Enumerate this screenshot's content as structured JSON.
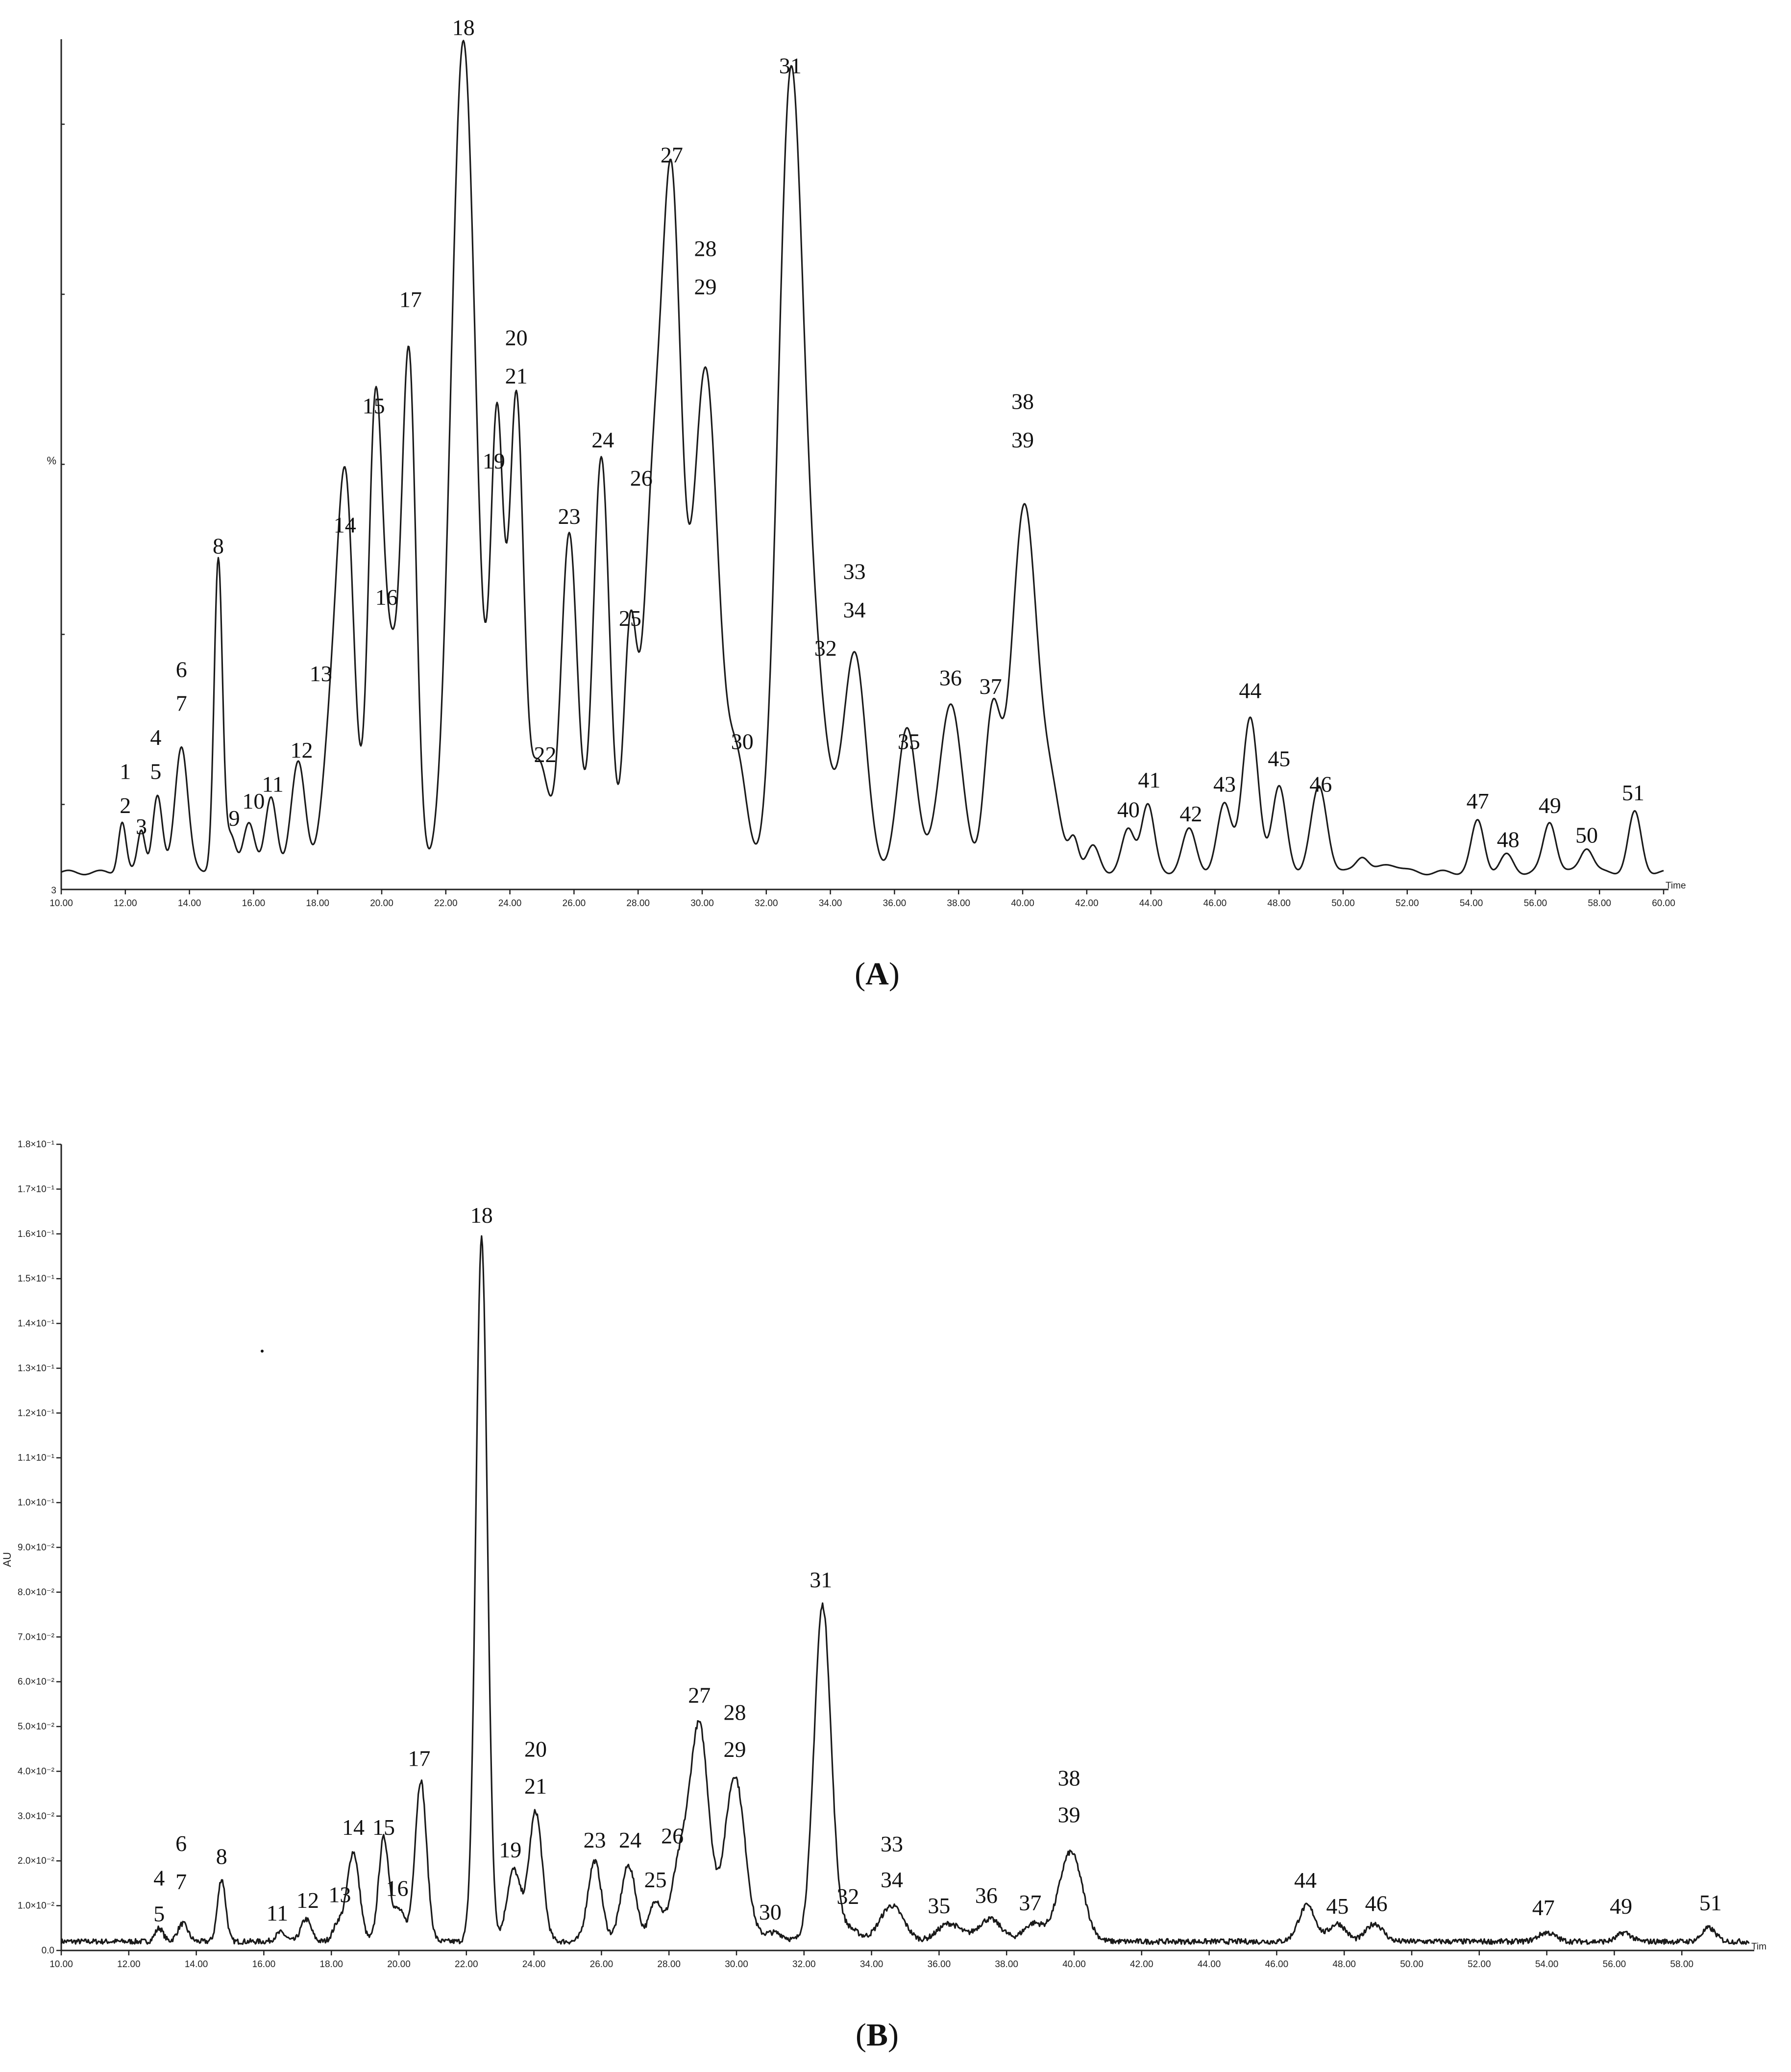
{
  "panels": [
    {
      "caption_letter": "A",
      "chart_data": {
        "type": "line",
        "title": "",
        "xlabel": "Time",
        "ylabel": "%",
        "y_bottom_tick": "3",
        "xlim": [
          10,
          60
        ],
        "ylim": [
          0,
          100
        ],
        "x_ticks": [
          "10.00",
          "12.00",
          "14.00",
          "16.00",
          "18.00",
          "20.00",
          "22.00",
          "24.00",
          "26.00",
          "28.00",
          "30.00",
          "32.00",
          "34.00",
          "36.00",
          "38.00",
          "40.00",
          "42.00",
          "44.00",
          "46.00",
          "48.00",
          "50.00",
          "52.00",
          "54.00",
          "56.00",
          "58.00",
          "60.00"
        ],
        "baseline": 2,
        "peaks": [
          {
            "x": 11.9,
            "y": 6,
            "w": 0.12
          },
          {
            "x": 12.5,
            "y": 5,
            "w": 0.12
          },
          {
            "x": 13.0,
            "y": 9,
            "w": 0.15
          },
          {
            "x": 13.75,
            "y": 15,
            "w": 0.2
          },
          {
            "x": 14.9,
            "y": 37,
            "w": 0.13
          },
          {
            "x": 15.3,
            "y": 4,
            "w": 0.15
          },
          {
            "x": 15.85,
            "y": 6,
            "w": 0.18
          },
          {
            "x": 16.55,
            "y": 9,
            "w": 0.18
          },
          {
            "x": 17.4,
            "y": 13,
            "w": 0.22
          },
          {
            "x": 18.5,
            "y": 19,
            "w": 0.3
          },
          {
            "x": 18.9,
            "y": 39,
            "w": 0.25
          },
          {
            "x": 19.8,
            "y": 54,
            "w": 0.22
          },
          {
            "x": 20.3,
            "y": 22,
            "w": 0.25
          },
          {
            "x": 20.85,
            "y": 60,
            "w": 0.22
          },
          {
            "x": 22.55,
            "y": 98,
            "w": 0.38
          },
          {
            "x": 23.6,
            "y": 52,
            "w": 0.2
          },
          {
            "x": 24.2,
            "y": 55,
            "w": 0.22
          },
          {
            "x": 24.9,
            "y": 13,
            "w": 0.3
          },
          {
            "x": 25.85,
            "y": 40,
            "w": 0.25
          },
          {
            "x": 26.85,
            "y": 49,
            "w": 0.25
          },
          {
            "x": 27.75,
            "y": 28,
            "w": 0.2
          },
          {
            "x": 28.45,
            "y": 40,
            "w": 0.3
          },
          {
            "x": 29.05,
            "y": 76,
            "w": 0.3
          },
          {
            "x": 30.1,
            "y": 59,
            "w": 0.4
          },
          {
            "x": 31.1,
            "y": 12,
            "w": 0.3
          },
          {
            "x": 32.75,
            "y": 91,
            "w": 0.38
          },
          {
            "x": 33.5,
            "y": 22,
            "w": 0.4
          },
          {
            "x": 34.75,
            "y": 26,
            "w": 0.35
          },
          {
            "x": 36.4,
            "y": 17,
            "w": 0.3
          },
          {
            "x": 37.75,
            "y": 20,
            "w": 0.35
          },
          {
            "x": 39.05,
            "y": 18,
            "w": 0.25
          },
          {
            "x": 40.05,
            "y": 43,
            "w": 0.4
          },
          {
            "x": 40.9,
            "y": 8,
            "w": 0.3
          },
          {
            "x": 41.6,
            "y": 4,
            "w": 0.15
          },
          {
            "x": 42.2,
            "y": 3,
            "w": 0.2
          },
          {
            "x": 43.3,
            "y": 5,
            "w": 0.2
          },
          {
            "x": 43.9,
            "y": 8,
            "w": 0.2
          },
          {
            "x": 45.2,
            "y": 5,
            "w": 0.22
          },
          {
            "x": 46.3,
            "y": 8,
            "w": 0.22
          },
          {
            "x": 47.1,
            "y": 18,
            "w": 0.25
          },
          {
            "x": 48.0,
            "y": 10,
            "w": 0.22
          },
          {
            "x": 49.25,
            "y": 10,
            "w": 0.25
          },
          {
            "x": 50.6,
            "y": 2,
            "w": 0.2
          },
          {
            "x": 51.5,
            "y": 1,
            "w": 0.3
          },
          {
            "x": 54.2,
            "y": 6,
            "w": 0.2
          },
          {
            "x": 55.1,
            "y": 2,
            "w": 0.2
          },
          {
            "x": 56.45,
            "y": 6,
            "w": 0.2
          },
          {
            "x": 57.6,
            "y": 3,
            "w": 0.2
          },
          {
            "x": 59.1,
            "y": 7,
            "w": 0.2
          }
        ],
        "annotations": [
          {
            "text": "1",
            "x": 12.0,
            "y": 13
          },
          {
            "text": "2",
            "x": 12.0,
            "y": 9
          },
          {
            "text": "3",
            "x": 12.5,
            "y": 6.5
          },
          {
            "text": "4",
            "x": 12.95,
            "y": 17
          },
          {
            "text": "5",
            "x": 12.95,
            "y": 13
          },
          {
            "text": "6",
            "x": 13.75,
            "y": 25
          },
          {
            "text": "7",
            "x": 13.75,
            "y": 21
          },
          {
            "text": "8",
            "x": 14.9,
            "y": 39.5
          },
          {
            "text": "9",
            "x": 15.4,
            "y": 7.5
          },
          {
            "text": "10",
            "x": 16.0,
            "y": 9.5
          },
          {
            "text": "11",
            "x": 16.6,
            "y": 11.5
          },
          {
            "text": "12",
            "x": 17.5,
            "y": 15.5
          },
          {
            "text": "13",
            "x": 18.1,
            "y": 24.5
          },
          {
            "text": "14",
            "x": 18.85,
            "y": 42
          },
          {
            "text": "15",
            "x": 19.75,
            "y": 56
          },
          {
            "text": "16",
            "x": 20.15,
            "y": 33.5
          },
          {
            "text": "17",
            "x": 20.9,
            "y": 68.5
          },
          {
            "text": "18",
            "x": 22.55,
            "y": 100.5
          },
          {
            "text": "19",
            "x": 23.5,
            "y": 49.5
          },
          {
            "text": "20",
            "x": 24.2,
            "y": 64
          },
          {
            "text": "21",
            "x": 24.2,
            "y": 59.5
          },
          {
            "text": "22",
            "x": 25.1,
            "y": 15
          },
          {
            "text": "23",
            "x": 25.85,
            "y": 43
          },
          {
            "text": "24",
            "x": 26.9,
            "y": 52
          },
          {
            "text": "25",
            "x": 27.75,
            "y": 31
          },
          {
            "text": "26",
            "x": 28.1,
            "y": 47.5
          },
          {
            "text": "27",
            "x": 29.05,
            "y": 85.5
          },
          {
            "text": "28",
            "x": 30.1,
            "y": 74.5
          },
          {
            "text": "29",
            "x": 30.1,
            "y": 70
          },
          {
            "text": "30",
            "x": 31.25,
            "y": 16.5
          },
          {
            "text": "31",
            "x": 32.75,
            "y": 96
          },
          {
            "text": "32",
            "x": 33.85,
            "y": 27.5
          },
          {
            "text": "33",
            "x": 34.75,
            "y": 36.5
          },
          {
            "text": "34",
            "x": 34.75,
            "y": 32
          },
          {
            "text": "35",
            "x": 36.45,
            "y": 16.5
          },
          {
            "text": "36",
            "x": 37.75,
            "y": 24
          },
          {
            "text": "37",
            "x": 39.0,
            "y": 23
          },
          {
            "text": "38",
            "x": 40.0,
            "y": 56.5
          },
          {
            "text": "39",
            "x": 40.0,
            "y": 52
          },
          {
            "text": "40",
            "x": 43.3,
            "y": 8.5
          },
          {
            "text": "41",
            "x": 43.95,
            "y": 12
          },
          {
            "text": "42",
            "x": 45.25,
            "y": 8
          },
          {
            "text": "43",
            "x": 46.3,
            "y": 11.5
          },
          {
            "text": "44",
            "x": 47.1,
            "y": 22.5
          },
          {
            "text": "45",
            "x": 48.0,
            "y": 14.5
          },
          {
            "text": "46",
            "x": 49.3,
            "y": 11.5
          },
          {
            "text": "47",
            "x": 54.2,
            "y": 9.5
          },
          {
            "text": "48",
            "x": 55.15,
            "y": 5
          },
          {
            "text": "49",
            "x": 56.45,
            "y": 9
          },
          {
            "text": "50",
            "x": 57.6,
            "y": 5.5
          },
          {
            "text": "51",
            "x": 59.05,
            "y": 10.5
          }
        ]
      }
    },
    {
      "caption_letter": "B",
      "chart_data": {
        "type": "line",
        "title": "",
        "xlabel": "Tim",
        "ylabel": "AU",
        "xlim": [
          10,
          60
        ],
        "ylim": [
          0,
          0.18
        ],
        "x_ticks": [
          "10.00",
          "12.00",
          "14.00",
          "16.00",
          "18.00",
          "20.00",
          "22.00",
          "24.00",
          "26.00",
          "28.00",
          "30.00",
          "32.00",
          "34.00",
          "36.00",
          "38.00",
          "40.00",
          "42.00",
          "44.00",
          "46.00",
          "48.00",
          "50.00",
          "52.00",
          "54.00",
          "56.00",
          "58.00"
        ],
        "y_tick_values": [
          0,
          0.01,
          0.02,
          0.03,
          0.04,
          0.05,
          0.06,
          0.07,
          0.08,
          0.09,
          0.1,
          0.11,
          0.12,
          0.13,
          0.14,
          0.15,
          0.16,
          0.17,
          0.18
        ],
        "y_ticks": [
          "0.0",
          "1.0×10⁻²",
          "2.0×10⁻²",
          "3.0×10⁻²",
          "4.0×10⁻²",
          "5.0×10⁻²",
          "6.0×10⁻²",
          "7.0×10⁻²",
          "8.0×10⁻²",
          "9.0×10⁻²",
          "1.0×10⁻¹",
          "1.1×10⁻¹",
          "1.2×10⁻¹",
          "1.3×10⁻¹",
          "1.4×10⁻¹",
          "1.5×10⁻¹",
          "1.6×10⁻¹",
          "1.7×10⁻¹",
          "1.8×10⁻¹"
        ],
        "baseline": 0.002,
        "noise": 0.0012,
        "peaks": [
          {
            "x": 12.9,
            "y": 0.003,
            "w": 0.12
          },
          {
            "x": 13.6,
            "y": 0.004,
            "w": 0.15
          },
          {
            "x": 14.75,
            "y": 0.014,
            "w": 0.12
          },
          {
            "x": 16.5,
            "y": 0.002,
            "w": 0.15
          },
          {
            "x": 17.25,
            "y": 0.005,
            "w": 0.15
          },
          {
            "x": 18.2,
            "y": 0.004,
            "w": 0.15
          },
          {
            "x": 18.65,
            "y": 0.02,
            "w": 0.18
          },
          {
            "x": 19.55,
            "y": 0.023,
            "w": 0.15
          },
          {
            "x": 20.0,
            "y": 0.007,
            "w": 0.18
          },
          {
            "x": 20.65,
            "y": 0.036,
            "w": 0.17
          },
          {
            "x": 22.45,
            "y": 0.157,
            "w": 0.17
          },
          {
            "x": 23.4,
            "y": 0.016,
            "w": 0.2
          },
          {
            "x": 24.05,
            "y": 0.029,
            "w": 0.2
          },
          {
            "x": 25.8,
            "y": 0.018,
            "w": 0.2
          },
          {
            "x": 26.8,
            "y": 0.017,
            "w": 0.22
          },
          {
            "x": 27.6,
            "y": 0.009,
            "w": 0.18
          },
          {
            "x": 28.3,
            "y": 0.016,
            "w": 0.25
          },
          {
            "x": 28.9,
            "y": 0.048,
            "w": 0.28
          },
          {
            "x": 29.95,
            "y": 0.037,
            "w": 0.3
          },
          {
            "x": 31.1,
            "y": 0.002,
            "w": 0.3
          },
          {
            "x": 32.55,
            "y": 0.075,
            "w": 0.25
          },
          {
            "x": 33.3,
            "y": 0.003,
            "w": 0.3
          },
          {
            "x": 34.6,
            "y": 0.008,
            "w": 0.35
          },
          {
            "x": 36.3,
            "y": 0.004,
            "w": 0.35
          },
          {
            "x": 37.5,
            "y": 0.005,
            "w": 0.35
          },
          {
            "x": 38.8,
            "y": 0.004,
            "w": 0.3
          },
          {
            "x": 39.9,
            "y": 0.02,
            "w": 0.35
          },
          {
            "x": 46.9,
            "y": 0.008,
            "w": 0.25
          },
          {
            "x": 47.8,
            "y": 0.004,
            "w": 0.25
          },
          {
            "x": 48.9,
            "y": 0.004,
            "w": 0.25
          },
          {
            "x": 54.0,
            "y": 0.002,
            "w": 0.25
          },
          {
            "x": 56.3,
            "y": 0.002,
            "w": 0.2
          },
          {
            "x": 58.8,
            "y": 0.003,
            "w": 0.2
          }
        ],
        "annotations": [
          {
            "text": "4",
            "x": 12.9,
            "y": 0.0145
          },
          {
            "text": "5",
            "x": 12.9,
            "y": 0.0065
          },
          {
            "text": "6",
            "x": 13.55,
            "y": 0.0222
          },
          {
            "text": "7",
            "x": 13.55,
            "y": 0.0137
          },
          {
            "text": "8",
            "x": 14.75,
            "y": 0.0193
          },
          {
            "text": "11",
            "x": 16.4,
            "y": 0.0067
          },
          {
            "text": "12",
            "x": 17.3,
            "y": 0.0095
          },
          {
            "text": "13",
            "x": 18.25,
            "y": 0.0108
          },
          {
            "text": "14",
            "x": 18.65,
            "y": 0.0258
          },
          {
            "text": "15",
            "x": 19.55,
            "y": 0.0258
          },
          {
            "text": "16",
            "x": 19.95,
            "y": 0.0122
          },
          {
            "text": "17",
            "x": 20.6,
            "y": 0.0412
          },
          {
            "text": "18",
            "x": 22.45,
            "y": 0.1625
          },
          {
            "text": "19",
            "x": 23.3,
            "y": 0.0208
          },
          {
            "text": "20",
            "x": 24.05,
            "y": 0.0433
          },
          {
            "text": "21",
            "x": 24.05,
            "y": 0.035
          },
          {
            "text": "23",
            "x": 25.8,
            "y": 0.023
          },
          {
            "text": "24",
            "x": 26.85,
            "y": 0.023
          },
          {
            "text": "25",
            "x": 27.6,
            "y": 0.0141
          },
          {
            "text": "26",
            "x": 28.1,
            "y": 0.0239
          },
          {
            "text": "27",
            "x": 28.9,
            "y": 0.0553
          },
          {
            "text": "28",
            "x": 29.95,
            "y": 0.0515
          },
          {
            "text": "29",
            "x": 29.95,
            "y": 0.0432
          },
          {
            "text": "30",
            "x": 31.0,
            "y": 0.0069
          },
          {
            "text": "31",
            "x": 32.5,
            "y": 0.0811
          },
          {
            "text": "32",
            "x": 33.3,
            "y": 0.0104
          },
          {
            "text": "33",
            "x": 34.6,
            "y": 0.0221
          },
          {
            "text": "34",
            "x": 34.6,
            "y": 0.0141
          },
          {
            "text": "35",
            "x": 36.0,
            "y": 0.0083
          },
          {
            "text": "36",
            "x": 37.4,
            "y": 0.0106
          },
          {
            "text": "37",
            "x": 38.7,
            "y": 0.009
          },
          {
            "text": "38",
            "x": 39.85,
            "y": 0.0368
          },
          {
            "text": "39",
            "x": 39.85,
            "y": 0.0286
          },
          {
            "text": "44",
            "x": 46.85,
            "y": 0.014
          },
          {
            "text": "45",
            "x": 47.8,
            "y": 0.0082
          },
          {
            "text": "46",
            "x": 48.95,
            "y": 0.0088
          },
          {
            "text": "47",
            "x": 53.9,
            "y": 0.0079
          },
          {
            "text": "49",
            "x": 56.2,
            "y": 0.0082
          },
          {
            "text": "51",
            "x": 58.85,
            "y": 0.009
          }
        ]
      }
    }
  ]
}
